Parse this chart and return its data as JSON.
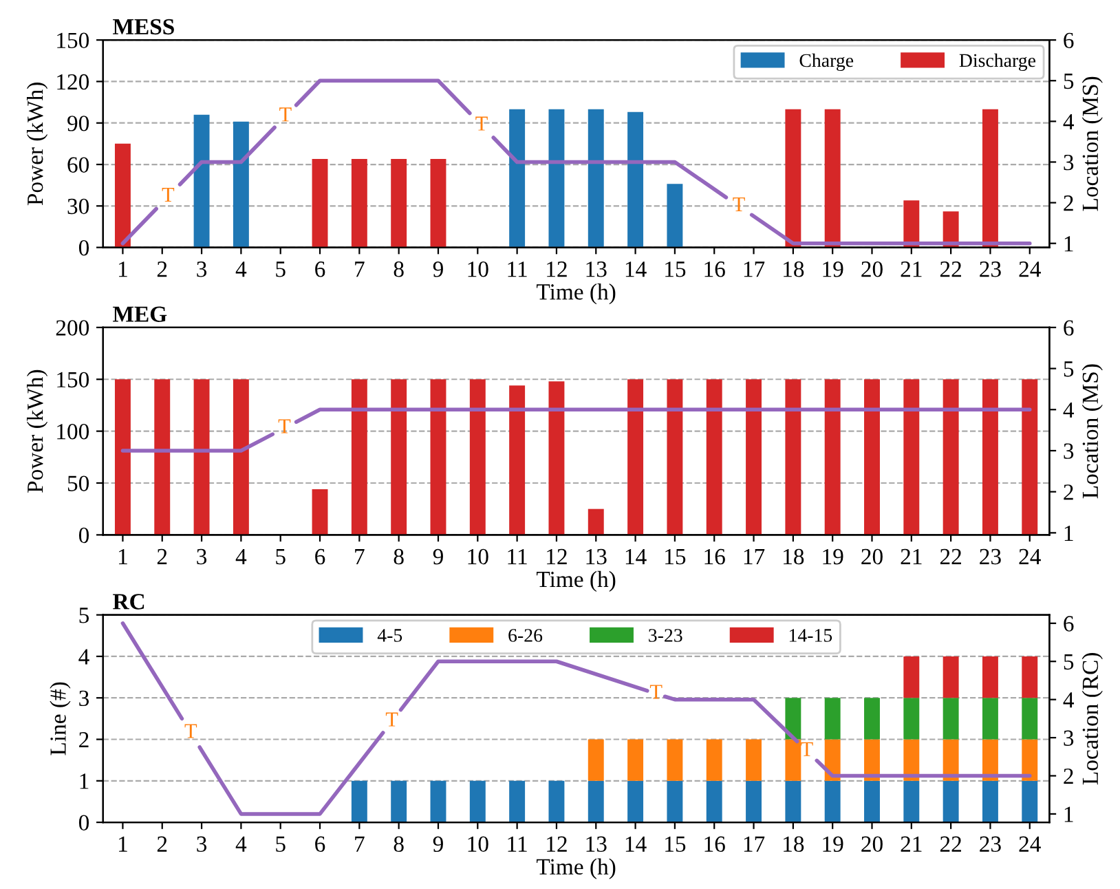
{
  "chart_data": [
    {
      "type": "bar",
      "title": "MESS",
      "xlabel": "Time (h)",
      "ylabel": "Power (kWh)",
      "y2label": "Location (MS)",
      "x": [
        1,
        2,
        3,
        4,
        5,
        6,
        7,
        8,
        9,
        10,
        11,
        12,
        13,
        14,
        15,
        16,
        17,
        18,
        19,
        20,
        21,
        22,
        23
      ],
      "xlim": [
        0.5,
        24.5
      ],
      "xticks": [
        1,
        2,
        3,
        4,
        5,
        6,
        7,
        8,
        9,
        10,
        11,
        12,
        13,
        14,
        15,
        16,
        17,
        18,
        19,
        20,
        21,
        22,
        23,
        24
      ],
      "ylim": [
        0,
        150
      ],
      "yticks": [
        0,
        30,
        60,
        90,
        120,
        150
      ],
      "y2lim": [
        0.9,
        6
      ],
      "y2ticks": [
        1,
        2,
        3,
        4,
        5,
        6
      ],
      "grid": "y",
      "legend": "top right",
      "marker": "none",
      "line_style": "solid",
      "series": [
        {
          "name": "Charge",
          "color": "#1f77b4",
          "values": [
            null,
            null,
            96,
            91,
            null,
            null,
            null,
            null,
            null,
            null,
            100,
            100,
            100,
            98,
            46,
            null,
            null,
            null,
            null,
            null,
            null,
            null,
            null
          ]
        },
        {
          "name": "Discharge",
          "color": "#d62728",
          "values": [
            75,
            null,
            null,
            null,
            null,
            64,
            64,
            64,
            64,
            null,
            null,
            null,
            null,
            null,
            null,
            null,
            null,
            100,
            100,
            null,
            34,
            26,
            100
          ]
        },
        {
          "type": "line",
          "axis": "y2",
          "color": "#9467bd",
          "x": [
            1,
            1.85,
            null,
            2.45,
            3,
            4,
            4.85,
            null,
            5.4,
            6,
            9,
            9.8,
            null,
            10.4,
            11,
            15,
            16.3,
            null,
            16.95,
            18,
            24
          ],
          "values": [
            1,
            1.85,
            null,
            2.45,
            3,
            3,
            3.85,
            null,
            4.4,
            5,
            5,
            4.2,
            null,
            3.6,
            3,
            3,
            2.13,
            null,
            1.7,
            1,
            1
          ]
        }
      ],
      "annotations": [
        "T",
        "T",
        "T",
        "T"
      ]
    },
    {
      "type": "bar",
      "title": "MEG",
      "xlabel": "Time (h)",
      "ylabel": "Power (kWh)",
      "y2label": "Location (MS)",
      "x": [
        1,
        2,
        3,
        4,
        5,
        6,
        7,
        8,
        9,
        10,
        11,
        12,
        13,
        14,
        15,
        16,
        17,
        18,
        19,
        20,
        21,
        22,
        23,
        24
      ],
      "xlim": [
        0.5,
        24.5
      ],
      "xticks": [
        1,
        2,
        3,
        4,
        5,
        6,
        7,
        8,
        9,
        10,
        11,
        12,
        13,
        14,
        15,
        16,
        17,
        18,
        19,
        20,
        21,
        22,
        23,
        24
      ],
      "ylim": [
        0,
        200
      ],
      "yticks": [
        0,
        50,
        100,
        150,
        200
      ],
      "y2lim": [
        0.95,
        6
      ],
      "y2ticks": [
        1,
        2,
        3,
        4,
        5,
        6
      ],
      "grid": "y",
      "marker": "none",
      "line_style": "solid",
      "series": [
        {
          "color": "#d62728",
          "values": [
            150,
            150,
            150,
            150,
            null,
            44,
            150,
            150,
            150,
            150,
            144,
            148,
            25,
            150,
            150,
            150,
            150,
            150,
            150,
            150,
            150,
            150,
            150,
            150
          ]
        },
        {
          "type": "line",
          "axis": "y2",
          "color": "#9467bd",
          "x": [
            1,
            4,
            4.8,
            null,
            5.4,
            6,
            24
          ],
          "values": [
            3,
            3,
            3.4,
            null,
            3.7,
            4,
            4
          ]
        }
      ],
      "annotations": [
        "T"
      ]
    },
    {
      "type": "bar",
      "title": "RC",
      "xlabel": "Time (h)",
      "ylabel": "Line (#)",
      "y2label": "Location (RC)",
      "x": [
        1,
        2,
        3,
        4,
        5,
        6,
        7,
        8,
        9,
        10,
        11,
        12,
        13,
        14,
        15,
        16,
        17,
        18,
        19,
        20,
        21,
        22,
        23,
        24
      ],
      "xlim": [
        0.5,
        24.5
      ],
      "xticks": [
        1,
        2,
        3,
        4,
        5,
        6,
        7,
        8,
        9,
        10,
        11,
        12,
        13,
        14,
        15,
        16,
        17,
        18,
        19,
        20,
        21,
        22,
        23,
        24
      ],
      "ylim": [
        0,
        5
      ],
      "yticks": [
        0,
        1,
        2,
        3,
        4,
        5
      ],
      "y2lim": [
        0.78,
        6.22
      ],
      "y2ticks": [
        1,
        2,
        3,
        4,
        5,
        6
      ],
      "grid": "y",
      "legend": "top",
      "stacked": true,
      "marker": "none",
      "line_style": "solid",
      "series": [
        {
          "name": "4-5",
          "color": "#1f77b4",
          "values": [
            0,
            0,
            0,
            0,
            0,
            0,
            1,
            1,
            1,
            1,
            1,
            1,
            1,
            1,
            1,
            1,
            1,
            1,
            1,
            1,
            1,
            1,
            1,
            1
          ]
        },
        {
          "name": "6-26",
          "color": "#ff7f0e",
          "values": [
            0,
            0,
            0,
            0,
            0,
            0,
            0,
            0,
            0,
            0,
            0,
            0,
            1,
            1,
            1,
            1,
            1,
            1,
            1,
            1,
            1,
            1,
            1,
            1
          ]
        },
        {
          "name": "3-23",
          "color": "#2ca02c",
          "values": [
            0,
            0,
            0,
            0,
            0,
            0,
            0,
            0,
            0,
            0,
            0,
            0,
            0,
            0,
            0,
            0,
            0,
            1,
            1,
            1,
            1,
            1,
            1,
            1
          ]
        },
        {
          "name": "14-15",
          "color": "#d62728",
          "values": [
            0,
            0,
            0,
            0,
            0,
            0,
            0,
            0,
            0,
            0,
            0,
            0,
            0,
            0,
            0,
            0,
            0,
            0,
            0,
            0,
            1,
            1,
            1,
            1
          ]
        },
        {
          "type": "line",
          "axis": "y2",
          "color": "#9467bd",
          "x": [
            1,
            2.5,
            null,
            2.95,
            4,
            6,
            7.6,
            null,
            8.05,
            9,
            12,
            14.3,
            null,
            14.75,
            15,
            17,
            18.1,
            null,
            18.6,
            19,
            24
          ],
          "values": [
            6,
            3.5,
            null,
            2.75,
            1,
            1,
            3.13,
            null,
            3.73,
            5,
            5,
            4.23,
            null,
            4.08,
            4,
            4,
            2.9,
            null,
            2.4,
            2,
            2
          ]
        }
      ],
      "annotations": [
        "T",
        "T",
        "T",
        "T"
      ]
    }
  ]
}
